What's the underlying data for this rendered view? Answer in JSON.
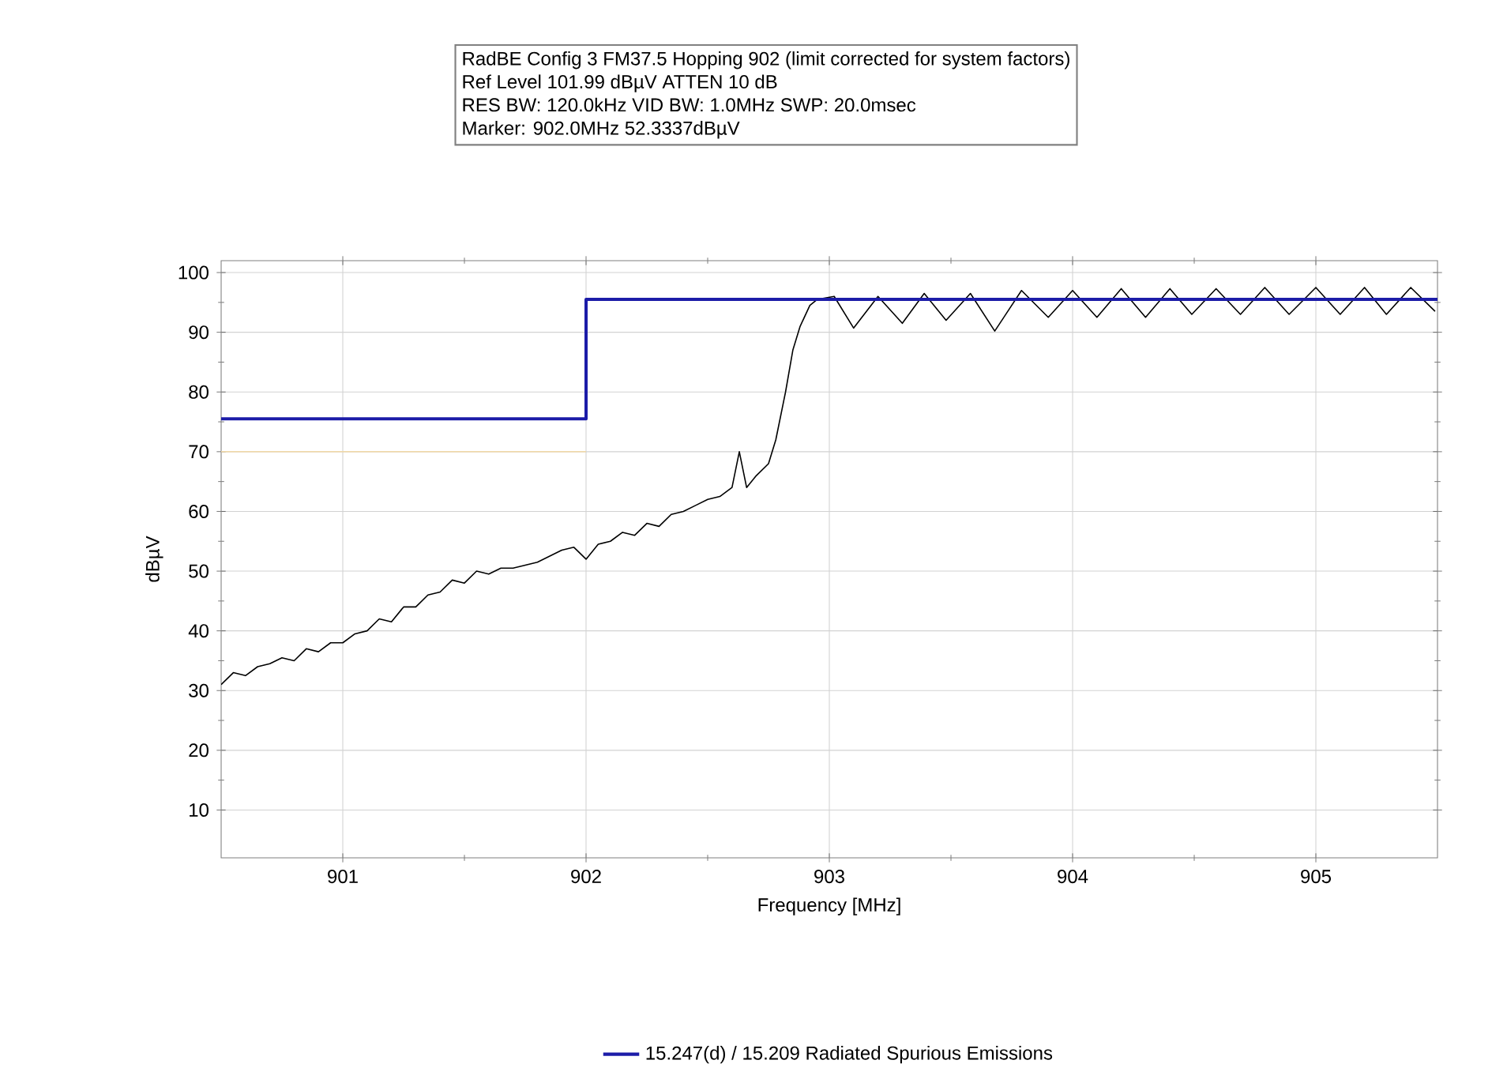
{
  "chart_data": {
    "type": "line",
    "annotations": [
      "RadBE Config 3 FM37.5 Hopping 902 (limit corrected for system factors)",
      "Ref Level 101.99 dBµV    ATTEN 10 dB",
      "RES BW: 120.0kHz  VID BW: 1.0MHz  SWP: 20.0msec",
      "Marker: 902.0MHz  52.3337dBµV"
    ],
    "xlabel": "Frequency [MHz]",
    "ylabel": "dBµV",
    "xlim": [
      900.5,
      905.5
    ],
    "ylim": [
      1.99,
      101.99
    ],
    "xticks": [
      901,
      902,
      903,
      904,
      905
    ],
    "yticks": [
      10,
      20,
      30,
      40,
      50,
      60,
      70,
      80,
      90,
      100
    ],
    "grid": true,
    "legend": "bottom",
    "marker": "none",
    "series": [
      {
        "color": "#000000",
        "x": [
          900.5,
          900.55,
          900.6,
          900.65,
          900.7,
          900.75,
          900.8,
          900.85,
          900.9,
          900.95,
          901.0,
          901.05,
          901.1,
          901.15,
          901.2,
          901.25,
          901.3,
          901.35,
          901.4,
          901.45,
          901.5,
          901.55,
          901.6,
          901.65,
          901.7,
          901.75,
          901.8,
          901.85,
          901.9,
          901.95,
          902.0,
          902.05,
          902.1,
          902.15,
          902.2,
          902.25,
          902.3,
          902.35,
          902.4,
          902.45,
          902.5,
          902.55,
          902.6,
          902.63,
          902.66,
          902.7,
          902.75,
          902.78,
          902.82,
          902.85,
          902.88,
          902.92,
          902.95,
          903.02,
          903.1,
          903.2,
          903.3,
          903.39,
          903.48,
          903.58,
          903.68,
          903.79,
          903.9,
          904.0,
          904.1,
          904.2,
          904.3,
          904.4,
          904.49,
          904.59,
          904.69,
          904.79,
          904.89,
          905.0,
          905.1,
          905.2,
          905.29,
          905.39,
          905.49
        ],
        "values": [
          31,
          33,
          32.5,
          34,
          34.5,
          35.5,
          35,
          37,
          36.5,
          38,
          38,
          39.5,
          40,
          42,
          41.5,
          44,
          44,
          46,
          46.5,
          48.5,
          48,
          50,
          49.5,
          50.5,
          50.5,
          51,
          51.5,
          52.5,
          53.5,
          54,
          52,
          54.5,
          55,
          56.5,
          56,
          58,
          57.5,
          59.5,
          60,
          61,
          62,
          62.5,
          64,
          70,
          64,
          66,
          68,
          72,
          80,
          87,
          91,
          94.5,
          95.5,
          96,
          90.7,
          96,
          91.5,
          96.5,
          92,
          96.5,
          90.2,
          97,
          92.5,
          97,
          92.5,
          97.3,
          92.5,
          97.3,
          93,
          97.3,
          93,
          97.5,
          93,
          97.5,
          93,
          97.5,
          93,
          97.5,
          93.5
        ]
      },
      {
        "color": "#f0d8a8",
        "x": [
          900.5,
          902.0
        ],
        "values": [
          70,
          70
        ]
      },
      {
        "type": "step",
        "name": "15.247(d) / 15.209 Radiated Spurious Emissions",
        "color": "#1c1ca8",
        "x": [
          900.5,
          902.0,
          905.5
        ],
        "values": [
          75.5,
          95.5,
          95.5
        ]
      }
    ]
  }
}
